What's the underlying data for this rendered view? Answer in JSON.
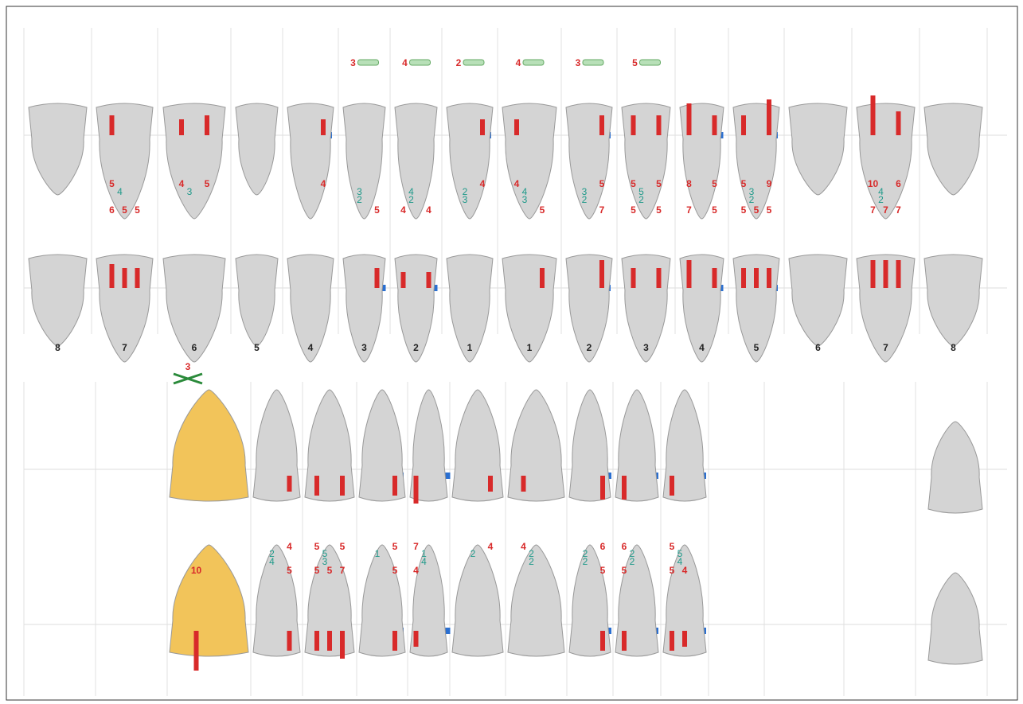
{
  "tooth_numbers": [
    "8",
    "7",
    "6",
    "5",
    "4",
    "3",
    "2",
    "1",
    "1",
    "2",
    "3",
    "4",
    "5",
    "6",
    "7",
    "8"
  ],
  "upper": {
    "mobility": [
      null,
      null,
      null,
      null,
      null,
      3,
      4,
      2,
      4,
      3,
      5,
      null,
      null,
      null,
      null,
      null
    ],
    "top_row": [
      null,
      [
        5,
        null,
        null
      ],
      [
        4,
        null,
        5
      ],
      null,
      [
        null,
        null,
        4
      ],
      null,
      null,
      [
        null,
        null,
        4
      ],
      [
        4,
        null,
        null
      ],
      [
        null,
        null,
        5
      ],
      [
        5,
        null,
        5
      ],
      [
        8,
        null,
        5
      ],
      [
        5,
        null,
        9
      ],
      null,
      [
        10,
        null,
        6
      ],
      null
    ],
    "mid_row": [
      null,
      [
        4
      ],
      [
        3
      ],
      null,
      null,
      [
        3,
        2
      ],
      [
        4,
        2
      ],
      [
        2,
        3
      ],
      [
        4,
        3
      ],
      [
        3,
        2
      ],
      [
        5,
        2
      ],
      null,
      [
        3,
        2
      ],
      null,
      [
        4,
        2
      ],
      null
    ],
    "bottom_row": [
      null,
      [
        6,
        5,
        5
      ],
      null,
      null,
      null,
      [
        null,
        null,
        5
      ],
      [
        4,
        null,
        4
      ],
      null,
      [
        null,
        null,
        5
      ],
      [
        null,
        null,
        7
      ],
      [
        5,
        null,
        5
      ],
      [
        7,
        null,
        5
      ],
      [
        5,
        5,
        5
      ],
      null,
      [
        7,
        7,
        7
      ],
      null
    ]
  },
  "lower": {
    "note": "3",
    "top_row": [
      null,
      null,
      null,
      [
        null,
        null,
        4
      ],
      [
        5,
        null,
        5
      ],
      [
        null,
        null,
        5
      ],
      [
        7,
        null,
        null
      ],
      [
        null,
        null,
        4
      ],
      [
        4,
        null,
        null
      ],
      [
        null,
        null,
        6
      ],
      [
        6,
        null,
        null
      ],
      [
        5,
        null,
        null
      ],
      null,
      null,
      null,
      null
    ],
    "mid_row": [
      null,
      null,
      null,
      [
        2,
        4
      ],
      [
        5,
        3
      ],
      [
        1
      ],
      [
        1,
        4
      ],
      [
        2
      ],
      [
        2,
        2
      ],
      [
        2,
        2
      ],
      [
        2,
        2
      ],
      [
        5,
        4
      ],
      null,
      null,
      null,
      null
    ],
    "bottom_row": [
      null,
      null,
      [
        10,
        null,
        null
      ],
      [
        null,
        null,
        5
      ],
      [
        5,
        5,
        7
      ],
      [
        null,
        null,
        5
      ],
      [
        4,
        null,
        null
      ],
      null,
      null,
      [
        null,
        null,
        5
      ],
      [
        5,
        null,
        null
      ],
      [
        5,
        4,
        null
      ],
      null,
      null,
      null,
      null
    ]
  }
}
